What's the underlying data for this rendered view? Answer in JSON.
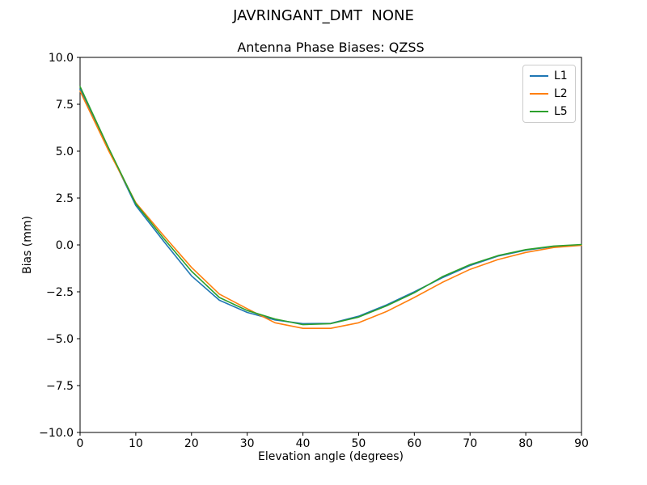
{
  "chart_data": {
    "type": "line",
    "suptitle": "JAVRINGANT_DMT  NONE",
    "title": "Antenna Phase Biases: QZSS",
    "xlabel": "Elevation angle (degrees)",
    "ylabel": "Bias (mm)",
    "xlim": [
      0,
      90
    ],
    "ylim": [
      -10,
      10
    ],
    "grid": false,
    "legend_position": "upper right",
    "frame_color": "#000000",
    "xticks": [
      0,
      10,
      20,
      30,
      40,
      50,
      60,
      70,
      80,
      90
    ],
    "xtick_labels": [
      "0",
      "10",
      "20",
      "30",
      "40",
      "50",
      "60",
      "70",
      "80",
      "90"
    ],
    "yticks": [
      10.0,
      7.5,
      5.0,
      2.5,
      0.0,
      -2.5,
      -5.0,
      -7.5,
      -10.0
    ],
    "ytick_labels": [
      "10.0",
      "7.5",
      "5.0",
      "2.5",
      "0.0",
      "−2.5",
      "−5.0",
      "−7.5",
      "−10.0"
    ],
    "x": [
      0,
      5,
      10,
      15,
      20,
      25,
      30,
      35,
      40,
      45,
      50,
      55,
      60,
      65,
      70,
      75,
      80,
      85,
      90
    ],
    "series": [
      {
        "name": "L1",
        "color": "#1f77b4",
        "values": [
          8.3,
          5.2,
          2.1,
          0.2,
          -1.65,
          -2.95,
          -3.6,
          -4.0,
          -4.2,
          -4.18,
          -3.8,
          -3.2,
          -2.5,
          -1.75,
          -1.1,
          -0.6,
          -0.28,
          -0.08,
          0.0
        ]
      },
      {
        "name": "L2",
        "color": "#ff7f0e",
        "values": [
          8.2,
          5.1,
          2.25,
          0.5,
          -1.2,
          -2.62,
          -3.4,
          -4.15,
          -4.45,
          -4.45,
          -4.15,
          -3.55,
          -2.8,
          -2.0,
          -1.3,
          -0.78,
          -0.4,
          -0.14,
          -0.02
        ]
      },
      {
        "name": "L5",
        "color": "#2ca02c",
        "values": [
          8.45,
          5.25,
          2.2,
          0.35,
          -1.4,
          -2.8,
          -3.5,
          -3.95,
          -4.25,
          -4.2,
          -3.85,
          -3.25,
          -2.55,
          -1.7,
          -1.05,
          -0.57,
          -0.25,
          -0.06,
          0.02
        ]
      }
    ]
  }
}
